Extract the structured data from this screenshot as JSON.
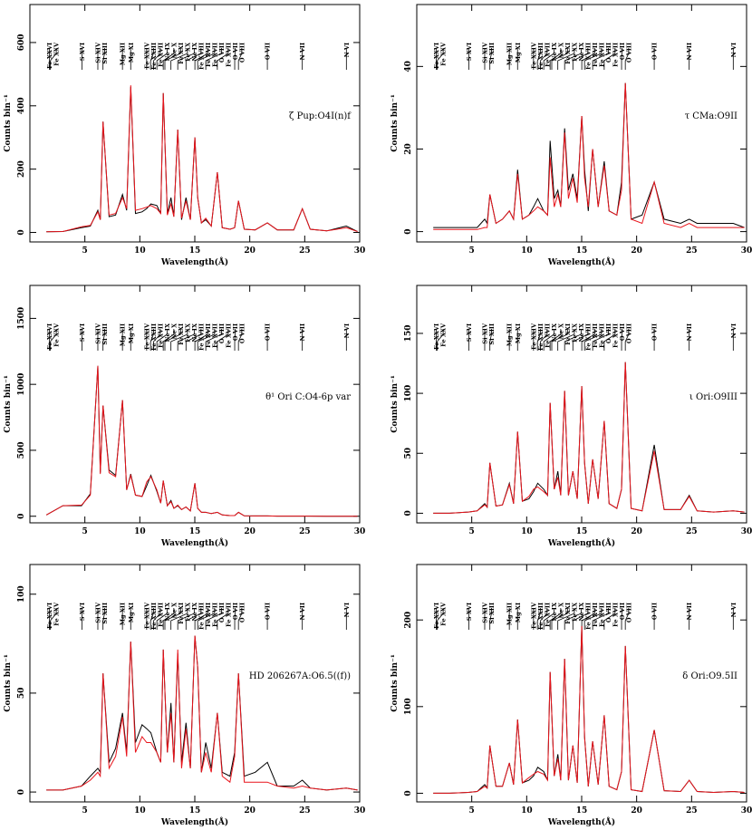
{
  "line_ids": {
    "labels": [
      "Fe XXVI",
      "Fe XXV",
      "S XVI",
      "Si XIV",
      "Si XIII",
      "Mg XII",
      "Mg XI",
      "Fe XXIV",
      "Fe XXIII",
      "Fe XVII",
      "Ne IX",
      "Ne X",
      "Fe XXI",
      "Fe XX",
      "Ne IX",
      "Fe XVIII",
      "Fe XVII",
      "Fe XVII",
      "O VIII",
      "Fe XVII",
      "O VII",
      "O VIII",
      "O VII",
      "N VII",
      "N VI"
    ],
    "wavelengths": [
      1.78,
      1.86,
      4.73,
      6.18,
      6.65,
      8.42,
      9.17,
      10.62,
      10.98,
      11.25,
      11.55,
      12.13,
      12.28,
      12.83,
      13.45,
      14.2,
      15.01,
      15.26,
      16.0,
      17.05,
      18.63,
      18.97,
      21.6,
      24.78,
      28.79
    ]
  },
  "chart_data": [
    {
      "type": "line",
      "title": "ζ Pup:O4I(n)f",
      "x_label": "Wavelength(Å)",
      "y_label": "Counts bin⁻¹",
      "xlim": [
        0,
        30
      ],
      "xticks": [
        5,
        10,
        15,
        20,
        25,
        30
      ],
      "ylim": [
        -30,
        720
      ],
      "yticks": [
        0,
        200,
        400,
        600
      ],
      "x": [
        1.5,
        3,
        4.7,
        5.5,
        6.18,
        6.4,
        6.65,
        7.2,
        7.8,
        8.42,
        8.8,
        9.17,
        9.6,
        10.2,
        10.62,
        11.0,
        11.55,
        11.9,
        12.13,
        12.5,
        12.83,
        13.1,
        13.45,
        13.8,
        14.2,
        14.6,
        15.01,
        15.26,
        15.6,
        16.0,
        16.5,
        17.05,
        17.5,
        18.2,
        18.63,
        18.97,
        19.5,
        20.5,
        21.6,
        22.5,
        24.0,
        24.78,
        25.5,
        27,
        28.79,
        29.8
      ],
      "series": [
        {
          "color": "#000000",
          "values": [
            2,
            3,
            15,
            20,
            70,
            40,
            350,
            50,
            55,
            120,
            70,
            460,
            60,
            65,
            75,
            90,
            85,
            60,
            440,
            60,
            110,
            50,
            325,
            40,
            110,
            40,
            300,
            110,
            30,
            40,
            20,
            190,
            15,
            10,
            15,
            100,
            10,
            8,
            30,
            8,
            8,
            75,
            10,
            5,
            20,
            3
          ]
        },
        {
          "color": "#e8141b",
          "values": [
            2,
            3,
            18,
            22,
            65,
            40,
            350,
            55,
            60,
            110,
            75,
            465,
            70,
            75,
            80,
            85,
            75,
            60,
            440,
            55,
            90,
            50,
            325,
            45,
            100,
            40,
            300,
            110,
            30,
            45,
            20,
            190,
            15,
            10,
            15,
            100,
            10,
            8,
            30,
            8,
            8,
            75,
            10,
            5,
            15,
            3
          ]
        }
      ]
    },
    {
      "type": "line",
      "title": "τ CMa:O9II",
      "x_label": "Wavelength(Å)",
      "y_label": "Counts bin⁻¹",
      "xlim": [
        0,
        30
      ],
      "xticks": [
        5,
        10,
        15,
        20,
        25,
        30
      ],
      "ylim": [
        -2.5,
        55
      ],
      "yticks": [
        0,
        20,
        40
      ],
      "x": [
        1.5,
        3,
        4.7,
        5.5,
        6.18,
        6.4,
        6.65,
        7.2,
        7.8,
        8.42,
        8.8,
        9.17,
        9.6,
        10.2,
        10.62,
        11.0,
        11.55,
        11.9,
        12.13,
        12.5,
        12.83,
        13.1,
        13.45,
        13.8,
        14.2,
        14.6,
        15.01,
        15.26,
        15.6,
        16.0,
        16.5,
        17.05,
        17.5,
        18.2,
        18.63,
        18.97,
        19.5,
        20.5,
        21.6,
        22.5,
        24.0,
        24.78,
        25.5,
        27,
        28.79,
        29.8
      ],
      "series": [
        {
          "color": "#000000",
          "values": [
            1,
            1,
            1,
            1,
            3,
            2,
            9,
            2,
            3,
            5,
            3,
            15,
            3,
            4,
            6,
            8,
            5,
            4,
            22,
            8,
            10,
            6,
            25,
            10,
            14,
            8,
            28,
            15,
            5,
            20,
            6,
            17,
            5,
            4,
            12,
            36,
            3,
            4,
            12,
            3,
            2,
            3,
            2,
            2,
            2,
            1
          ]
        },
        {
          "color": "#e8141b",
          "values": [
            0.5,
            0.5,
            0.5,
            0.5,
            1,
            1,
            9,
            2,
            3,
            5,
            3,
            14,
            3,
            4,
            5,
            6,
            5,
            4,
            18,
            6,
            9,
            6,
            24,
            8,
            13,
            7,
            28,
            13,
            6,
            20,
            6,
            16,
            5,
            4,
            10,
            36,
            3,
            2,
            12,
            2,
            1,
            2,
            1,
            1,
            1,
            1
          ]
        }
      ]
    },
    {
      "type": "line",
      "title": "θ¹ Ori C:O4-6p var",
      "x_label": "Wavelength(Å)",
      "y_label": "Counts bin⁻¹",
      "xlim": [
        0,
        30
      ],
      "xticks": [
        5,
        10,
        15,
        20,
        25,
        30
      ],
      "ylim": [
        -50,
        1750
      ],
      "yticks": [
        0,
        500,
        1000,
        1500
      ],
      "x": [
        1.5,
        3,
        4.7,
        5.5,
        6.18,
        6.4,
        6.65,
        7.2,
        7.8,
        8.42,
        8.8,
        9.17,
        9.6,
        10.2,
        10.62,
        11.0,
        11.55,
        11.9,
        12.13,
        12.5,
        12.83,
        13.1,
        13.45,
        13.8,
        14.2,
        14.6,
        15.01,
        15.26,
        15.6,
        16.0,
        16.5,
        17.05,
        17.5,
        18.2,
        18.63,
        18.97,
        19.5,
        20.5,
        21.6,
        22.5,
        24.0,
        24.78,
        25.5,
        27,
        28.79,
        29.8
      ],
      "series": [
        {
          "color": "#000000",
          "values": [
            10,
            80,
            80,
            170,
            1140,
            330,
            840,
            350,
            310,
            880,
            200,
            320,
            160,
            150,
            230,
            310,
            190,
            100,
            270,
            80,
            120,
            60,
            80,
            50,
            70,
            40,
            250,
            60,
            30,
            30,
            20,
            30,
            10,
            5,
            5,
            30,
            3,
            2,
            2,
            1,
            1,
            1,
            1,
            0,
            0,
            0
          ]
        },
        {
          "color": "#e8141b",
          "values": [
            10,
            80,
            85,
            160,
            1140,
            320,
            840,
            330,
            300,
            880,
            200,
            310,
            160,
            150,
            260,
            300,
            200,
            100,
            270,
            80,
            110,
            60,
            85,
            50,
            70,
            40,
            250,
            60,
            30,
            30,
            20,
            30,
            10,
            5,
            5,
            30,
            3,
            2,
            2,
            1,
            1,
            1,
            1,
            0,
            0,
            0
          ]
        }
      ]
    },
    {
      "type": "line",
      "title": "ι Ori:O9III",
      "x_label": "Wavelength(Å)",
      "y_label": "Counts bin⁻¹",
      "xlim": [
        0,
        30
      ],
      "xticks": [
        5,
        10,
        15,
        20,
        25,
        30
      ],
      "ylim": [
        -8,
        190
      ],
      "yticks": [
        0,
        50,
        100,
        150
      ],
      "x": [
        1.5,
        3,
        4.7,
        5.5,
        6.18,
        6.4,
        6.65,
        7.2,
        7.8,
        8.42,
        8.8,
        9.17,
        9.6,
        10.2,
        10.62,
        11.0,
        11.55,
        11.9,
        12.13,
        12.5,
        12.83,
        13.1,
        13.45,
        13.8,
        14.2,
        14.6,
        15.01,
        15.26,
        15.6,
        16.0,
        16.5,
        17.05,
        17.5,
        18.2,
        18.63,
        18.97,
        19.5,
        20.5,
        21.6,
        22.5,
        24.0,
        24.78,
        25.5,
        27,
        28.79,
        29.8
      ],
      "series": [
        {
          "color": "#000000",
          "values": [
            0,
            0,
            1,
            2,
            8,
            5,
            42,
            6,
            7,
            25,
            8,
            68,
            10,
            12,
            18,
            25,
            20,
            15,
            92,
            20,
            35,
            15,
            102,
            15,
            35,
            12,
            106,
            42,
            8,
            45,
            12,
            77,
            8,
            4,
            20,
            126,
            4,
            2,
            57,
            3,
            3,
            15,
            2,
            1,
            2,
            1
          ]
        },
        {
          "color": "#e8141b",
          "values": [
            0,
            0,
            1,
            2,
            7,
            5,
            42,
            6,
            7,
            24,
            8,
            68,
            10,
            14,
            20,
            22,
            18,
            15,
            92,
            20,
            30,
            15,
            102,
            15,
            35,
            12,
            106,
            42,
            8,
            45,
            12,
            77,
            8,
            4,
            20,
            126,
            4,
            2,
            52,
            3,
            3,
            14,
            2,
            1,
            2,
            1
          ]
        }
      ]
    },
    {
      "type": "line",
      "title": "HD 206267A:O6.5((f))",
      "x_label": "Wavelength(Å)",
      "y_label": "Counts bin⁻¹",
      "xlim": [
        0,
        30
      ],
      "xticks": [
        5,
        10,
        15,
        20,
        25,
        30
      ],
      "ylim": [
        -5,
        115
      ],
      "yticks": [
        0,
        50,
        100
      ],
      "x": [
        1.5,
        3,
        4.7,
        5.5,
        6.18,
        6.4,
        6.65,
        7.2,
        7.8,
        8.42,
        8.8,
        9.17,
        9.6,
        10.2,
        10.62,
        11.0,
        11.55,
        11.9,
        12.13,
        12.5,
        12.83,
        13.1,
        13.45,
        13.8,
        14.2,
        14.6,
        15.01,
        15.26,
        15.6,
        16.0,
        16.5,
        17.05,
        17.5,
        18.2,
        18.63,
        18.97,
        19.5,
        20.5,
        21.6,
        22.5,
        24.0,
        24.78,
        25.5,
        27,
        28.79,
        29.8
      ],
      "series": [
        {
          "color": "#000000",
          "values": [
            1,
            1,
            3,
            8,
            12,
            10,
            60,
            15,
            22,
            40,
            20,
            76,
            25,
            34,
            32,
            30,
            20,
            15,
            72,
            20,
            45,
            15,
            70,
            15,
            35,
            12,
            79,
            63,
            10,
            25,
            12,
            40,
            10,
            8,
            20,
            60,
            8,
            10,
            15,
            3,
            3,
            6,
            2,
            1,
            2,
            1
          ]
        },
        {
          "color": "#e8141b",
          "values": [
            1,
            1,
            3,
            6,
            10,
            8,
            60,
            12,
            18,
            38,
            18,
            76,
            20,
            28,
            25,
            25,
            20,
            15,
            72,
            20,
            40,
            15,
            72,
            12,
            32,
            12,
            79,
            63,
            10,
            20,
            10,
            40,
            8,
            5,
            18,
            60,
            5,
            5,
            5,
            3,
            2,
            3,
            2,
            1,
            2,
            1
          ]
        }
      ]
    },
    {
      "type": "line",
      "title": "δ Ori:O9.5II",
      "x_label": "Wavelength(Å)",
      "y_label": "Counts bin⁻¹",
      "xlim": [
        0,
        30
      ],
      "xticks": [
        5,
        10,
        15,
        20,
        25,
        30
      ],
      "ylim": [
        -10,
        264
      ],
      "yticks": [
        0,
        100,
        200
      ],
      "x": [
        1.5,
        3,
        4.7,
        5.5,
        6.18,
        6.4,
        6.65,
        7.2,
        7.8,
        8.42,
        8.8,
        9.17,
        9.6,
        10.2,
        10.62,
        11.0,
        11.55,
        11.9,
        12.13,
        12.5,
        12.83,
        13.1,
        13.45,
        13.8,
        14.2,
        14.6,
        15.01,
        15.26,
        15.6,
        16.0,
        16.5,
        17.05,
        17.5,
        18.2,
        18.63,
        18.97,
        19.5,
        20.5,
        21.6,
        22.5,
        24.0,
        24.78,
        25.5,
        27,
        28.79,
        29.8
      ],
      "series": [
        {
          "color": "#000000",
          "values": [
            0,
            0,
            1,
            2,
            10,
            6,
            55,
            8,
            8,
            35,
            10,
            85,
            12,
            15,
            20,
            30,
            25,
            15,
            140,
            20,
            45,
            15,
            155,
            15,
            55,
            12,
            193,
            65,
            8,
            60,
            10,
            90,
            8,
            4,
            25,
            170,
            4,
            2,
            73,
            3,
            2,
            15,
            2,
            1,
            2,
            1
          ]
        },
        {
          "color": "#e8141b",
          "values": [
            0,
            0,
            1,
            2,
            8,
            6,
            55,
            8,
            8,
            35,
            10,
            85,
            12,
            18,
            22,
            25,
            22,
            15,
            140,
            20,
            40,
            15,
            155,
            15,
            55,
            12,
            193,
            65,
            8,
            60,
            10,
            90,
            8,
            4,
            25,
            170,
            4,
            2,
            73,
            3,
            2,
            15,
            2,
            1,
            2,
            1
          ]
        }
      ]
    }
  ]
}
